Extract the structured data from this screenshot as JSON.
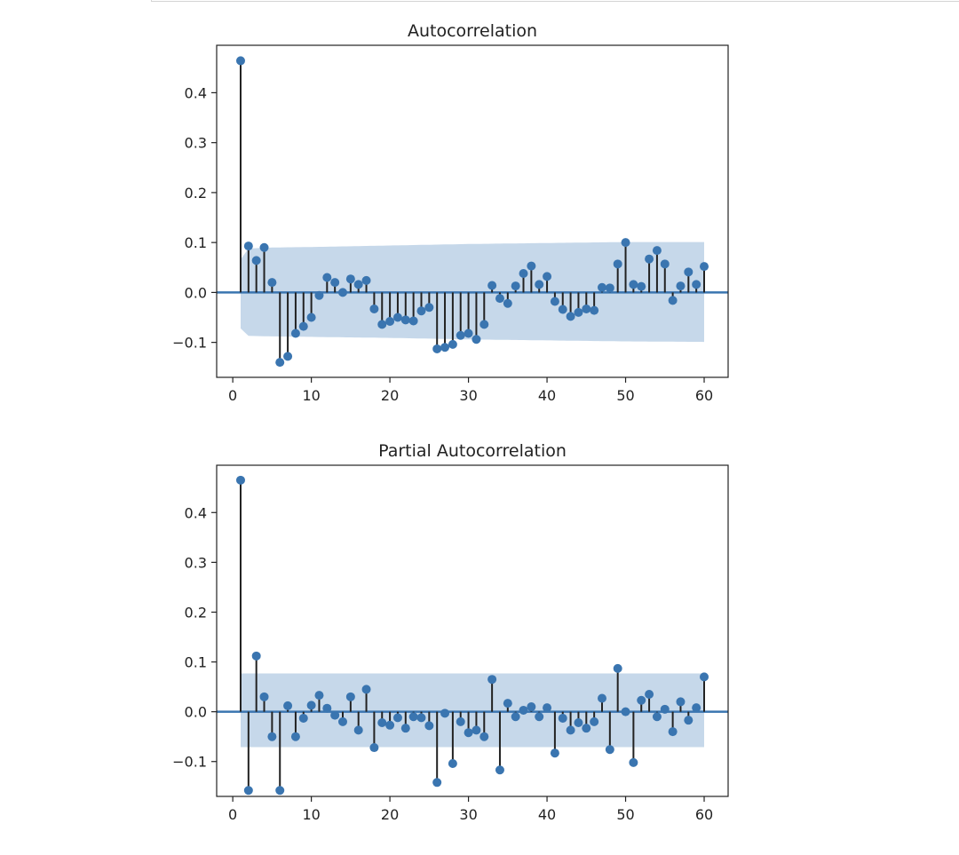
{
  "chart_data": [
    {
      "type": "stem",
      "title": "Autocorrelation",
      "xlabel": "",
      "ylabel": "",
      "xlim": [
        -2.05,
        63.05
      ],
      "ylim": [
        -0.17,
        0.495
      ],
      "xticks": [
        0,
        10,
        20,
        30,
        40,
        50,
        60
      ],
      "yticks": [
        -0.1,
        0.0,
        0.1,
        0.2,
        0.3,
        0.4
      ],
      "ytick_labels": [
        "−0.1",
        "0.0",
        "0.1",
        "0.2",
        "0.3",
        "0.4"
      ],
      "grid": false,
      "confidence_band": {
        "x": [
          1,
          2,
          5,
          10,
          20,
          30,
          40,
          50,
          60
        ],
        "upper": [
          0.066,
          0.088,
          0.09,
          0.091,
          0.094,
          0.097,
          0.099,
          0.101,
          0.101
        ],
        "lower": [
          -0.072,
          -0.087,
          -0.088,
          -0.089,
          -0.091,
          -0.094,
          -0.096,
          -0.098,
          -0.099
        ]
      },
      "x": [
        1,
        2,
        3,
        4,
        5,
        6,
        7,
        8,
        9,
        10,
        11,
        12,
        13,
        14,
        15,
        16,
        17,
        18,
        19,
        20,
        21,
        22,
        23,
        24,
        25,
        26,
        27,
        28,
        29,
        30,
        31,
        32,
        33,
        34,
        35,
        36,
        37,
        38,
        39,
        40,
        41,
        42,
        43,
        44,
        45,
        46,
        47,
        48,
        49,
        50,
        51,
        52,
        53,
        54,
        55,
        56,
        57,
        58,
        59,
        60
      ],
      "values": [
        0.464,
        0.093,
        0.064,
        0.09,
        0.02,
        -0.14,
        -0.128,
        -0.082,
        -0.068,
        -0.05,
        -0.006,
        0.03,
        0.02,
        0.0,
        0.027,
        0.016,
        0.024,
        -0.033,
        -0.064,
        -0.058,
        -0.05,
        -0.055,
        -0.057,
        -0.037,
        -0.03,
        -0.113,
        -0.11,
        -0.104,
        -0.086,
        -0.082,
        -0.094,
        -0.064,
        0.014,
        -0.012,
        -0.022,
        0.013,
        0.038,
        0.053,
        0.016,
        0.032,
        -0.018,
        -0.034,
        -0.048,
        -0.04,
        -0.033,
        -0.036,
        0.01,
        0.009,
        0.057,
        0.1,
        0.016,
        0.012,
        0.067,
        0.084,
        0.057,
        -0.016,
        0.013,
        0.041,
        0.016,
        0.052
      ]
    },
    {
      "type": "stem",
      "title": "Partial Autocorrelation",
      "xlabel": "",
      "ylabel": "",
      "xlim": [
        -2.05,
        63.05
      ],
      "ylim": [
        -0.17,
        0.495
      ],
      "xticks": [
        0,
        10,
        20,
        30,
        40,
        50,
        60
      ],
      "yticks": [
        -0.1,
        0.0,
        0.1,
        0.2,
        0.3,
        0.4
      ],
      "ytick_labels": [
        "−0.1",
        "0.0",
        "0.1",
        "0.2",
        "0.3",
        "0.4"
      ],
      "grid": false,
      "confidence_band": {
        "x": [
          1,
          60
        ],
        "upper": [
          0.077,
          0.077
        ],
        "lower": [
          -0.071,
          -0.071
        ]
      },
      "x": [
        1,
        2,
        3,
        4,
        5,
        6,
        7,
        8,
        9,
        10,
        11,
        12,
        13,
        14,
        15,
        16,
        17,
        18,
        19,
        20,
        21,
        22,
        23,
        24,
        25,
        26,
        27,
        28,
        29,
        30,
        31,
        32,
        33,
        34,
        35,
        36,
        37,
        38,
        39,
        40,
        41,
        42,
        43,
        44,
        45,
        46,
        47,
        48,
        49,
        50,
        51,
        52,
        53,
        54,
        55,
        56,
        57,
        58,
        59,
        60
      ],
      "values": [
        0.465,
        -0.158,
        0.112,
        0.03,
        -0.05,
        -0.158,
        0.012,
        -0.05,
        -0.013,
        0.013,
        0.033,
        0.007,
        -0.007,
        -0.02,
        0.03,
        -0.037,
        0.045,
        -0.072,
        -0.022,
        -0.027,
        -0.012,
        -0.033,
        -0.01,
        -0.012,
        -0.028,
        -0.142,
        -0.003,
        -0.104,
        -0.02,
        -0.042,
        -0.037,
        -0.05,
        0.065,
        -0.117,
        0.017,
        -0.01,
        0.003,
        0.01,
        -0.01,
        0.008,
        -0.083,
        -0.013,
        -0.037,
        -0.022,
        -0.033,
        -0.02,
        0.027,
        -0.076,
        0.087,
        0.0,
        -0.102,
        0.023,
        0.035,
        -0.01,
        0.005,
        -0.04,
        0.02,
        -0.017,
        0.008,
        0.07
      ]
    }
  ],
  "colors": {
    "marker": "#3a75b0",
    "stem": "#222222",
    "band": "#c6d8ea",
    "baseline": "#3a75b0",
    "axes": "#222222"
  }
}
